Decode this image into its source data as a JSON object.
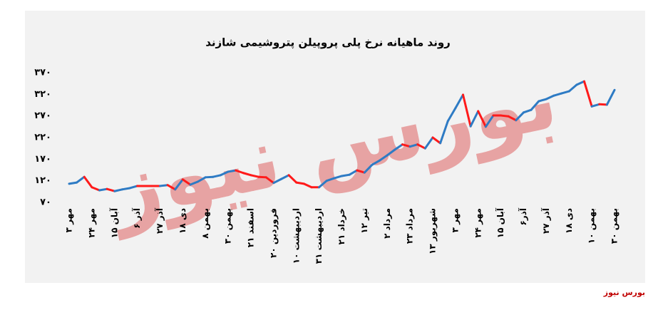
{
  "chart_data": {
    "type": "line",
    "title": "روند ماهیانه نرخ پلی پروپیلن پتروشیمی شازند",
    "watermark": "بورس نیوز",
    "source": "بورس نیوز",
    "categories": [
      "۳ مهر",
      null,
      null,
      "۲۴ مهر",
      null,
      null,
      "۱۵ آبان",
      null,
      null,
      "۶ آذر",
      null,
      null,
      "۲۷ آذر",
      null,
      null,
      "۱۸ دی",
      null,
      null,
      "۸ بهمن",
      null,
      null,
      "۳۰ بهمن",
      null,
      null,
      "۲۱ اسفند",
      null,
      null,
      "۲۰ فروردین",
      null,
      null,
      "۱۰ اردیبهشت",
      null,
      null,
      "۳۱ اردیبهشت",
      null,
      null,
      "۲۱ خرداد",
      null,
      null,
      "۱۲ تیر",
      null,
      null,
      "۲ مرداد",
      null,
      null,
      "۲۳ مرداد",
      null,
      null,
      "۱۳ شهریور",
      null,
      null,
      "۳ مهر",
      null,
      null,
      "۲۴ مهر",
      null,
      null,
      "۱۵ آبان",
      null,
      null,
      "۶آذر",
      null,
      null,
      "۲۷ آذر",
      null,
      null,
      "۱۸ دی",
      null,
      null,
      "۱۰ بهمن",
      null,
      null,
      "۳۰ بهمن"
    ],
    "series": [
      {
        "values": [
          113,
          116,
          129,
          105,
          98,
          101,
          96,
          100,
          103,
          108,
          108,
          108,
          108,
          110,
          100,
          123,
          111,
          118,
          128,
          129,
          133,
          141,
          144,
          138,
          133,
          129,
          128,
          115,
          124,
          133,
          116,
          113,
          105,
          105,
          120,
          126,
          131,
          134,
          144,
          139,
          157,
          167,
          179,
          192,
          204,
          199,
          204,
          195,
          220,
          207,
          258,
          288,
          319,
          246,
          281,
          245,
          271,
          271,
          269,
          260,
          278,
          284,
          304,
          309,
          317,
          322,
          327,
          342,
          350,
          292,
          297,
          296,
          330
        ]
      }
    ],
    "up_color": "#2e7bc4",
    "down_color": "#ff1a1a",
    "ylim": [
      70,
      370
    ],
    "yticks": [
      {
        "value": 70,
        "label": "۷۰"
      },
      {
        "value": 120,
        "label": "۱۲۰"
      },
      {
        "value": 170,
        "label": "۱۷۰"
      },
      {
        "value": 220,
        "label": "۲۲۰"
      },
      {
        "value": 270,
        "label": "۲۷۰"
      },
      {
        "value": 320,
        "label": "۳۲۰"
      },
      {
        "value": 370,
        "label": "۳۷۰"
      }
    ]
  }
}
